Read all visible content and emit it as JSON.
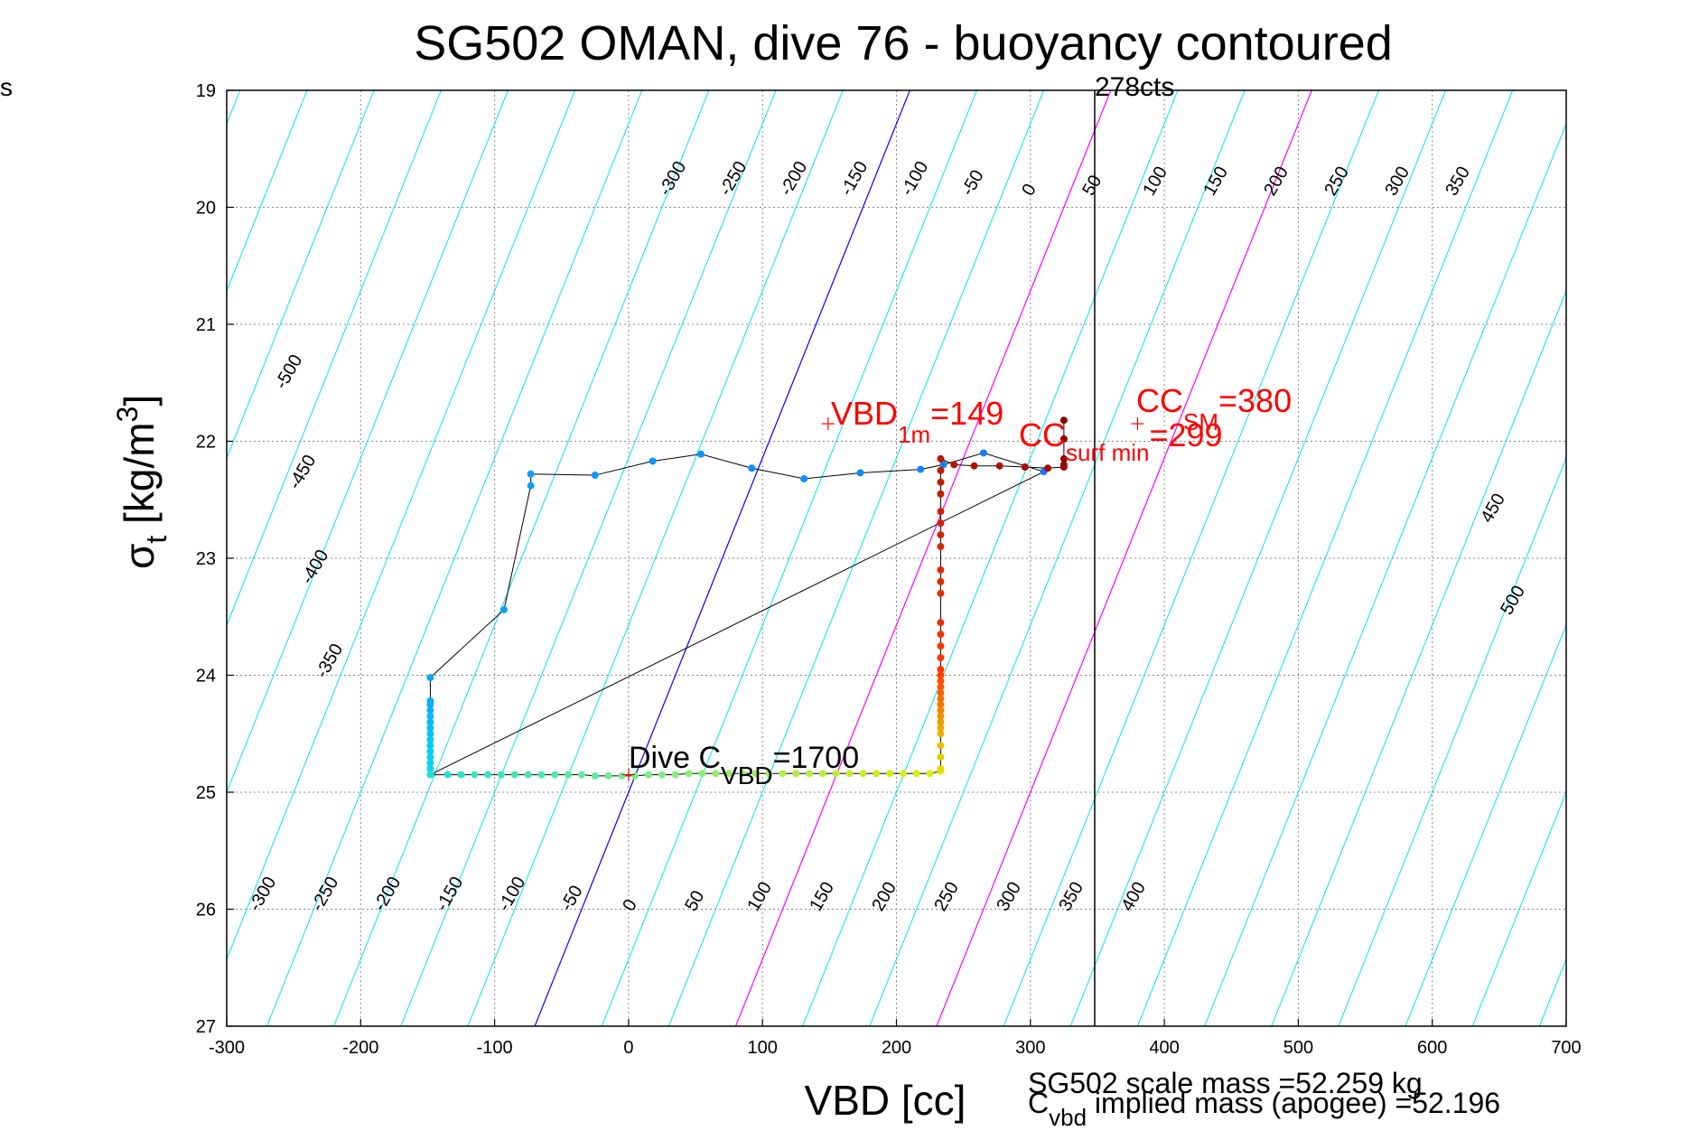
{
  "corner_text": "s",
  "chart_data": {
    "type": "scatter",
    "title": "SG502 OMAN, dive 76 - buoyancy contoured",
    "xlabel": "VBD [cc]",
    "ylabel_main": "σ",
    "ylabel_sub": "t",
    "ylabel_unit": " [kg/m",
    "ylabel_sup": "3",
    "ylabel_close": "]",
    "xlim": [
      -300,
      700
    ],
    "ylim": [
      19,
      27
    ],
    "y_reversed": true,
    "grid": true,
    "xticks": [
      -300,
      -200,
      -100,
      0,
      100,
      200,
      300,
      400,
      500,
      600,
      700
    ],
    "yticks": [
      19,
      20,
      21,
      22,
      23,
      24,
      25,
      26,
      27
    ],
    "contour_values_top": [
      "-300",
      "-250",
      "-200",
      "-150",
      "-100",
      "-50",
      "0",
      "50",
      "100",
      "150",
      "200",
      "250",
      "300",
      "350"
    ],
    "contour_values_left": [
      "-500",
      "-450",
      "-400",
      "-350"
    ],
    "contour_values_right": [
      "450",
      "500"
    ],
    "contour_values_bottom": [
      "-300",
      "-250",
      "-200",
      "-150",
      "-100",
      "-50",
      "0",
      "50",
      "100",
      "150",
      "200",
      "250",
      "300",
      "350",
      "400"
    ],
    "colors": {
      "contour": "#00e5ee",
      "zero_contour": "#0000ff",
      "magenta_contour": "#ff00ff",
      "grid": "#888888",
      "annotation": "#ff0000"
    },
    "apogee_line_x": 348,
    "apogee_label": "278cts",
    "annotations": {
      "vbd_1m": {
        "text": "VBD",
        "sub": "1m",
        "value": "=149",
        "x": 149,
        "y": 21.85
      },
      "cc_sm": {
        "text": "CC",
        "sub": "SM",
        "value": "=380",
        "x": 380,
        "y": 21.85
      },
      "cc_surf": {
        "text": "CC",
        "sub": "surf min",
        "value": "=299"
      },
      "dive_c": {
        "text": "Dive C",
        "sub": "VBD",
        "value": "=1700",
        "x": 0,
        "y": 24.85
      }
    },
    "footer_line1": "SG502 scale mass =52.259 kg",
    "footer_line2_main": "C",
    "footer_line2_sub": "vbd",
    "footer_line2_rest": " implied mass (apogee) =52.196",
    "series_descent": [
      [
        -148,
        24.85
      ],
      [
        -148,
        24.8
      ],
      [
        -148,
        24.75
      ],
      [
        -148,
        24.7
      ],
      [
        -148,
        24.65
      ],
      [
        -148,
        24.6
      ],
      [
        -148,
        24.55
      ],
      [
        -148,
        24.5
      ],
      [
        -148,
        24.45
      ],
      [
        -148,
        24.4
      ],
      [
        -148,
        24.35
      ],
      [
        -148,
        24.3
      ],
      [
        -148,
        24.25
      ],
      [
        -148,
        24.22
      ],
      [
        -148,
        24.02
      ],
      [
        -93,
        23.44
      ],
      [
        -73,
        22.38
      ],
      [
        -73,
        22.28
      ],
      [
        -25,
        22.29
      ],
      [
        18,
        22.17
      ],
      [
        54,
        22.11
      ],
      [
        92,
        22.23
      ],
      [
        131,
        22.32
      ],
      [
        173,
        22.27
      ],
      [
        218,
        22.24
      ],
      [
        235,
        22.2
      ],
      [
        265,
        22.1
      ],
      [
        310,
        22.26
      ]
    ],
    "series_bottom": [
      [
        -148,
        24.85
      ],
      [
        -135,
        24.85
      ],
      [
        -125,
        24.85
      ],
      [
        -115,
        24.85
      ],
      [
        -105,
        24.85
      ],
      [
        -95,
        24.85
      ],
      [
        -85,
        24.85
      ],
      [
        -75,
        24.85
      ],
      [
        -65,
        24.85
      ],
      [
        -55,
        24.85
      ],
      [
        -45,
        24.85
      ],
      [
        -35,
        24.85
      ],
      [
        -25,
        24.86
      ],
      [
        -15,
        24.86
      ],
      [
        -5,
        24.86
      ],
      [
        5,
        24.86
      ],
      [
        15,
        24.85
      ],
      [
        25,
        24.85
      ],
      [
        35,
        24.85
      ],
      [
        45,
        24.84
      ],
      [
        55,
        24.84
      ],
      [
        65,
        24.84
      ],
      [
        75,
        24.84
      ],
      [
        85,
        24.84
      ],
      [
        95,
        24.84
      ],
      [
        105,
        24.84
      ],
      [
        115,
        24.84
      ],
      [
        125,
        24.84
      ],
      [
        135,
        24.84
      ],
      [
        145,
        24.84
      ],
      [
        155,
        24.84
      ],
      [
        165,
        24.84
      ],
      [
        175,
        24.84
      ],
      [
        185,
        24.84
      ],
      [
        195,
        24.84
      ],
      [
        205,
        24.84
      ],
      [
        215,
        24.84
      ],
      [
        225,
        24.84
      ],
      [
        233,
        24.82
      ]
    ],
    "series_ascent": [
      [
        233,
        24.8
      ],
      [
        233,
        24.7
      ],
      [
        233,
        24.6
      ],
      [
        233,
        24.5
      ],
      [
        233,
        24.45
      ],
      [
        233,
        24.4
      ],
      [
        233,
        24.35
      ],
      [
        233,
        24.3
      ],
      [
        233,
        24.25
      ],
      [
        233,
        24.2
      ],
      [
        233,
        24.15
      ],
      [
        233,
        24.1
      ],
      [
        233,
        24.05
      ],
      [
        233,
        24.0
      ],
      [
        233,
        23.95
      ],
      [
        233,
        23.85
      ],
      [
        233,
        23.75
      ],
      [
        233,
        23.65
      ],
      [
        233,
        23.55
      ],
      [
        233,
        23.3
      ],
      [
        233,
        23.2
      ],
      [
        233,
        23.1
      ],
      [
        233,
        22.9
      ],
      [
        233,
        22.8
      ],
      [
        233,
        22.7
      ],
      [
        233,
        22.6
      ],
      [
        233,
        22.45
      ],
      [
        233,
        22.35
      ],
      [
        233,
        22.25
      ],
      [
        233,
        22.15
      ],
      [
        243,
        22.2
      ],
      [
        258,
        22.21
      ],
      [
        277,
        22.21
      ],
      [
        296,
        22.22
      ],
      [
        313,
        22.23
      ],
      [
        325,
        22.22
      ],
      [
        325,
        22.2
      ],
      [
        325,
        22.15
      ],
      [
        325,
        21.98
      ],
      [
        325,
        21.82
      ]
    ]
  }
}
